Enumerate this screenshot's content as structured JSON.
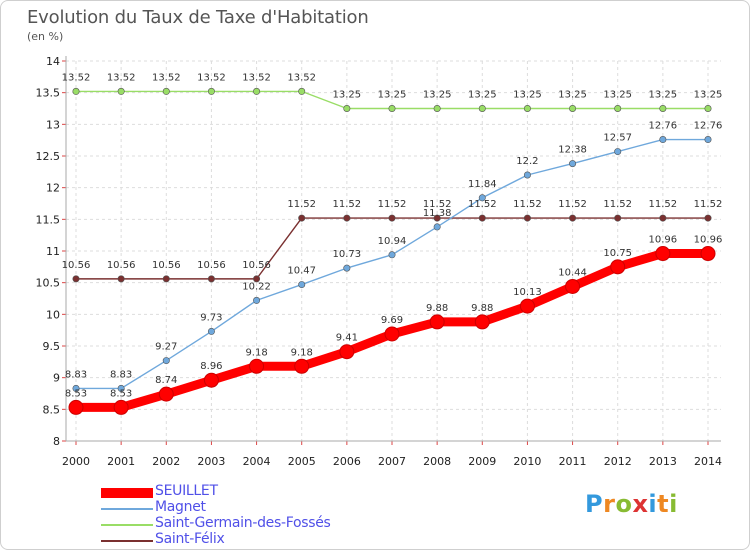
{
  "title": "Evolution du Taux de Taxe d'Habitation",
  "subtitle": "(en %)",
  "logo": "Proxiti",
  "colors": {
    "grid": "#dddddd",
    "axis": "#aaaaaa",
    "tick_mark": "#dd4444",
    "legend_text": "#5050e8"
  },
  "chart_data": {
    "type": "line",
    "x": [
      "2000",
      "2001",
      "2002",
      "2003",
      "2004",
      "2005",
      "2006",
      "2007",
      "2008",
      "2009",
      "2010",
      "2011",
      "2012",
      "2013",
      "2014"
    ],
    "ylim": [
      8,
      14
    ],
    "yticks": [
      "8",
      "8.5",
      "9",
      "9.5",
      "10",
      "10.5",
      "11",
      "11.5",
      "12",
      "12.5",
      "13",
      "13.5",
      "14"
    ],
    "grid": "horizontal",
    "legend_position": "bottom-left",
    "series": [
      {
        "name": "SEUILLET",
        "color": "#ff0000",
        "values": [
          8.53,
          8.53,
          8.74,
          8.96,
          9.18,
          9.18,
          9.41,
          9.69,
          9.88,
          9.88,
          10.13,
          10.44,
          10.75,
          10.96,
          10.96
        ],
        "labels": [
          "8.53",
          "8.53",
          "8.74",
          "8.96",
          "9.18",
          "9.18",
          "9.41",
          "9.69",
          "9.88",
          "9.88",
          "10.13",
          "10.44",
          "10.75",
          "10.96",
          "10.96"
        ]
      },
      {
        "name": "Magnet",
        "color": "#6fa8dc",
        "values": [
          8.83,
          8.83,
          9.27,
          9.73,
          10.22,
          10.47,
          10.73,
          10.94,
          11.38,
          11.84,
          12.2,
          12.38,
          12.57,
          12.76,
          12.76
        ],
        "labels": [
          "8.83",
          "8.83",
          "9.27",
          "9.73",
          "10.22",
          "10.47",
          "10.73",
          "10.94",
          "11.38",
          "11.84",
          "12.2",
          "12.38",
          "12.57",
          "12.76",
          "12.76"
        ]
      },
      {
        "name": "Saint-Germain-des-Fossés",
        "color": "#99dd66",
        "values": [
          13.52,
          13.52,
          13.52,
          13.52,
          13.52,
          13.52,
          13.25,
          13.25,
          13.25,
          13.25,
          13.25,
          13.25,
          13.25,
          13.25,
          13.25
        ],
        "labels": [
          "13.52",
          "13.52",
          "13.52",
          "13.52",
          "13.52",
          "13.52",
          "13.25",
          "13.25",
          "13.25",
          "13.25",
          "13.25",
          "13.25",
          "13.25",
          "13.25",
          "13.25"
        ]
      },
      {
        "name": "Saint-Félix",
        "color": "#7a3030",
        "values": [
          10.56,
          10.56,
          10.56,
          10.56,
          10.56,
          11.52,
          11.52,
          11.52,
          11.52,
          11.52,
          11.52,
          11.52,
          11.52,
          11.52,
          11.52
        ],
        "labels": [
          "10.56",
          "10.56",
          "10.56",
          "10.56",
          "10.56",
          "11.52",
          "11.52",
          "11.52",
          "11.52",
          "11.52",
          "11.52",
          "11.52",
          "11.52",
          "11.52",
          "11.52"
        ]
      }
    ]
  }
}
